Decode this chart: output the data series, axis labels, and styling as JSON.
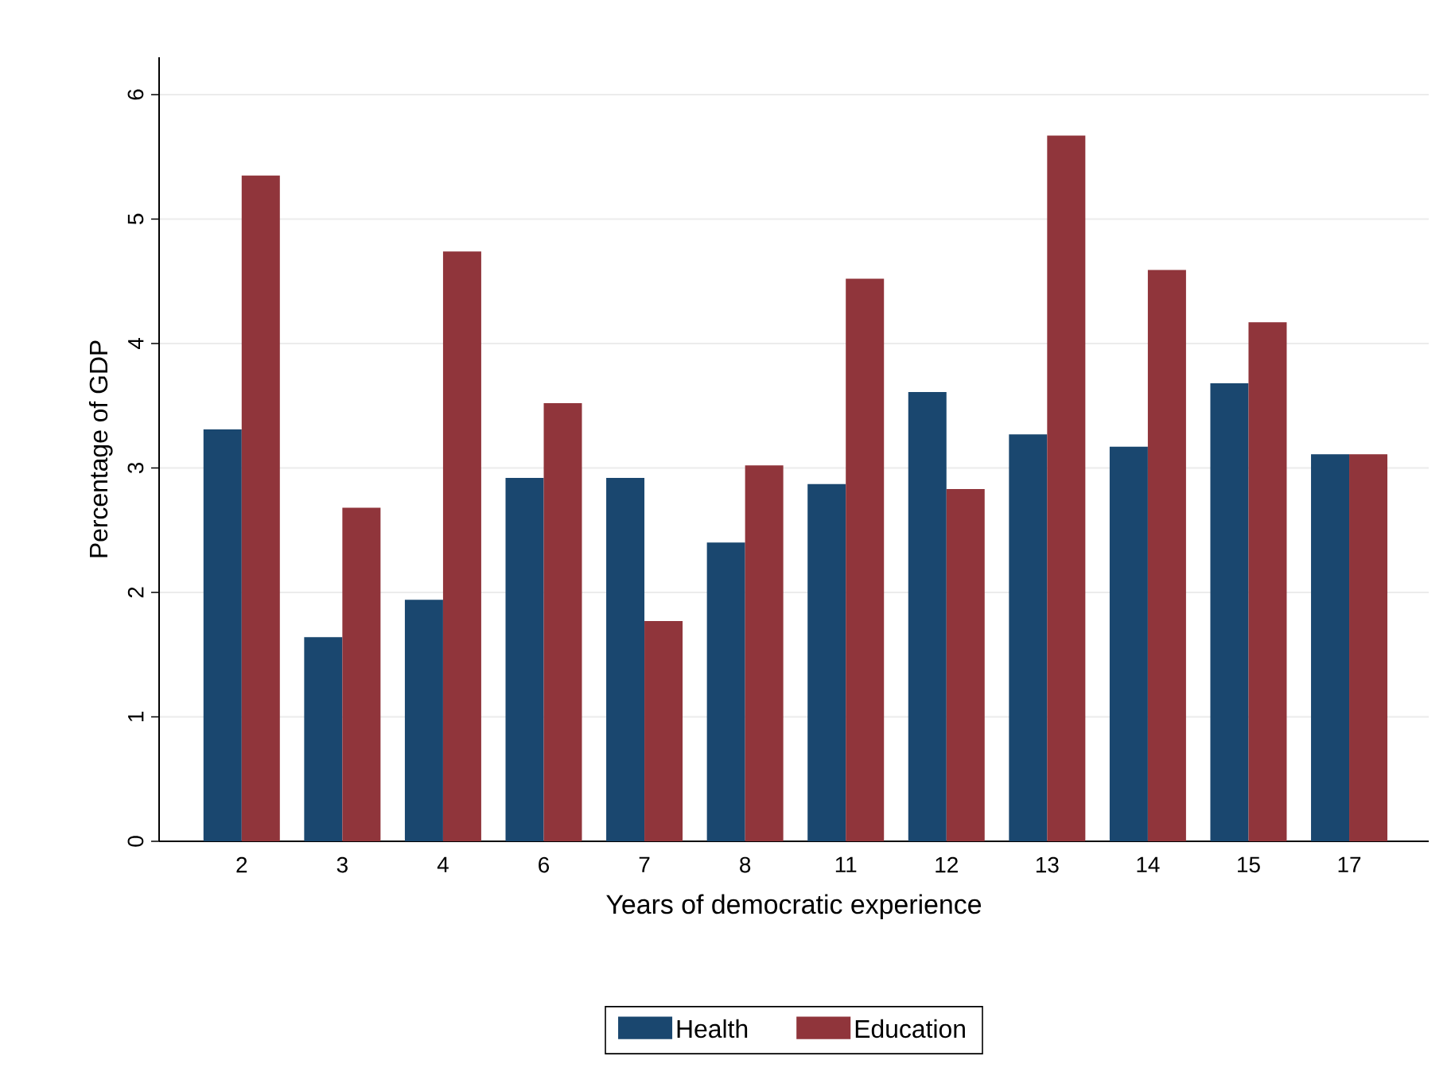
{
  "chart_data": {
    "type": "bar",
    "xlabel": "Years of democratic experience",
    "ylabel": "Percentage of GDP",
    "categories": [
      "2",
      "3",
      "4",
      "6",
      "7",
      "8",
      "11",
      "12",
      "13",
      "14",
      "15",
      "17"
    ],
    "series": [
      {
        "name": "Health",
        "color": "#1a476f",
        "values": [
          3.31,
          1.64,
          1.94,
          2.92,
          2.92,
          2.4,
          2.87,
          3.61,
          3.27,
          3.17,
          3.68,
          3.11
        ]
      },
      {
        "name": "Education",
        "color": "#90353b",
        "values": [
          5.35,
          2.68,
          4.74,
          3.52,
          1.77,
          3.02,
          4.52,
          2.83,
          5.67,
          4.59,
          4.17,
          3.11
        ]
      }
    ],
    "ylim": [
      0,
      6.3
    ],
    "yticks": [
      0,
      1,
      2,
      3,
      4,
      5,
      6
    ],
    "grid": "y",
    "legend": "bottom"
  }
}
